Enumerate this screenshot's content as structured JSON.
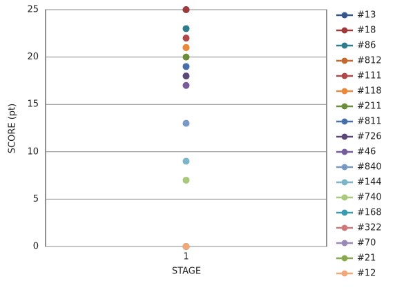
{
  "chart_data": {
    "type": "line",
    "x_label": "STAGE",
    "y_label": "SCORE (pt)",
    "categories": [
      "1"
    ],
    "series": [
      {
        "name": "#13",
        "color": "#34558b",
        "values": [
          25
        ]
      },
      {
        "name": "#18",
        "color": "#9e3a3a",
        "values": [
          25
        ]
      },
      {
        "name": "#86",
        "color": "#2f7c8c",
        "values": [
          23
        ]
      },
      {
        "name": "#812",
        "color": "#c06a2c",
        "values": [
          21
        ]
      },
      {
        "name": "#111",
        "color": "#b04848",
        "values": [
          22
        ]
      },
      {
        "name": "#118",
        "color": "#e8893c",
        "values": [
          21
        ]
      },
      {
        "name": "#211",
        "color": "#6c8d3a",
        "values": [
          20
        ]
      },
      {
        "name": "#811",
        "color": "#4870a8",
        "values": [
          19
        ]
      },
      {
        "name": "#726",
        "color": "#5a4878",
        "values": [
          18
        ]
      },
      {
        "name": "#46",
        "color": "#775c9c",
        "values": [
          17
        ]
      },
      {
        "name": "#840",
        "color": "#7898c6",
        "values": [
          13
        ]
      },
      {
        "name": "#144",
        "color": "#7ab6c8",
        "values": [
          9
        ]
      },
      {
        "name": "#740",
        "color": "#a8c87a",
        "values": [
          7
        ]
      },
      {
        "name": "#168",
        "color": "#3b9ab0",
        "values": [
          0
        ]
      },
      {
        "name": "#322",
        "color": "#cc7878",
        "values": [
          0
        ]
      },
      {
        "name": "#70",
        "color": "#9a88b8",
        "values": [
          0
        ]
      },
      {
        "name": "#21",
        "color": "#88a84e",
        "values": [
          0
        ]
      },
      {
        "name": "#12",
        "color": "#f0a878",
        "values": [
          0
        ]
      }
    ],
    "ylim": [
      0,
      25
    ],
    "yticks": [
      0,
      5,
      10,
      15,
      20,
      25
    ],
    "grid": true
  }
}
